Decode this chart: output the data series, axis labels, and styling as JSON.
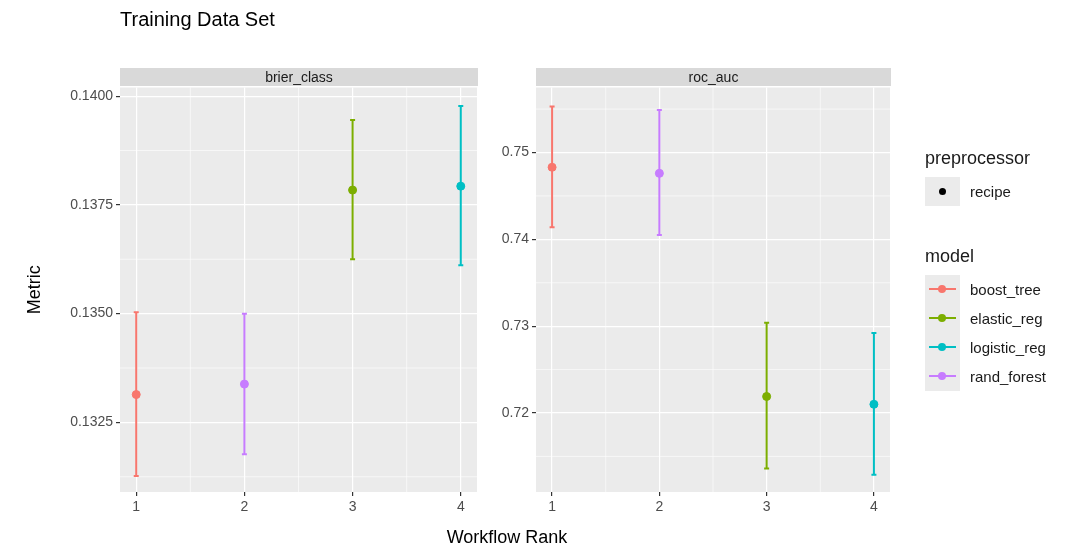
{
  "chart_data": [
    {
      "type": "scatter",
      "title": "Training Data Set",
      "subtitle": "brier_class",
      "xlabel": "Workflow Rank",
      "ylabel": "Metric",
      "marker": "circle",
      "grid": true,
      "legend": false,
      "xlim": [
        0.85,
        4.15
      ],
      "xticks": [
        1,
        2,
        3,
        4
      ],
      "ylim": [
        0.1309,
        0.1402
      ],
      "yticks": [
        {
          "value": 0.1325,
          "label": "0.1325"
        },
        {
          "value": 0.135,
          "label": "0.1350"
        },
        {
          "value": 0.1375,
          "label": "0.1375"
        },
        {
          "value": 0.14,
          "label": "0.1400"
        }
      ],
      "series": [
        {
          "color": "#f8766d",
          "x": [
            1
          ],
          "values": [
            0.13314
          ],
          "errors": [
            [
              0.13127,
              0.13503
            ]
          ]
        },
        {
          "color": "#7cae00",
          "x": [
            3
          ],
          "values": [
            0.13784
          ],
          "errors": [
            [
              0.13625,
              0.13945
            ]
          ]
        },
        {
          "color": "#00bfc4",
          "x": [
            4
          ],
          "values": [
            0.13793
          ],
          "errors": [
            [
              0.13611,
              0.13977
            ]
          ]
        },
        {
          "color": "#c77cff",
          "x": [
            2
          ],
          "values": [
            0.13338
          ],
          "errors": [
            [
              0.13177,
              0.135
            ]
          ]
        }
      ]
    },
    {
      "type": "scatter",
      "subtitle": "roc_auc",
      "legend": "right",
      "legend_title": "model",
      "annotations": [
        "preprocessor",
        "recipe"
      ],
      "marker": "circle",
      "grid": true,
      "xlim": [
        0.85,
        4.15
      ],
      "xticks": [
        1,
        2,
        3,
        4
      ],
      "ylim": [
        0.7109,
        0.7575
      ],
      "yticks": [
        0.72,
        0.73,
        0.74,
        0.75
      ],
      "series": [
        {
          "name": "boost_tree",
          "color": "#f8766d",
          "x": [
            1
          ],
          "values": [
            0.7483
          ],
          "errors": [
            [
              0.7414,
              0.7553
            ]
          ]
        },
        {
          "name": "elastic_reg",
          "color": "#7cae00",
          "x": [
            3
          ],
          "values": [
            0.7219
          ],
          "errors": [
            [
              0.7136,
              0.7304
            ]
          ]
        },
        {
          "name": "logistic_reg",
          "color": "#00bfc4",
          "x": [
            4
          ],
          "values": [
            0.721
          ],
          "errors": [
            [
              0.7129,
              0.7292
            ]
          ]
        },
        {
          "name": "rand_forest",
          "color": "#c77cff",
          "x": [
            2
          ],
          "values": [
            0.7476
          ],
          "errors": [
            [
              0.7405,
              0.7549
            ]
          ]
        }
      ]
    }
  ]
}
